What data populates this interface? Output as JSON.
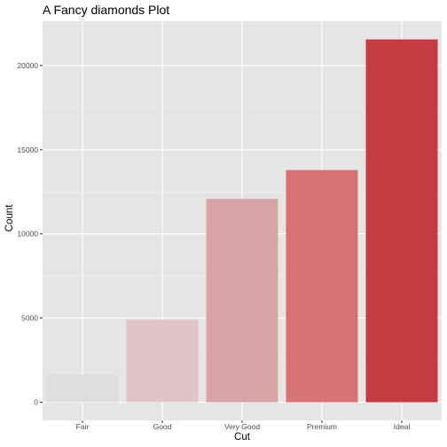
{
  "chart_data": {
    "type": "bar",
    "title": "A Fancy diamonds Plot",
    "xlabel": "Cut",
    "ylabel": "Count",
    "categories": [
      "Fair",
      "Good",
      "Very Good",
      "Premium",
      "Ideal"
    ],
    "values": [
      1610,
      4906,
      12082,
      13791,
      21551
    ],
    "colors": [
      "#dedede",
      "#dfc5c7",
      "#daa3a5",
      "#d57275",
      "#c63b42"
    ],
    "y_ticks": [
      0,
      5000,
      10000,
      15000,
      20000
    ],
    "ylim": [
      -1077.55,
      22628.55
    ],
    "panel_background": "#e5e5e5",
    "grid": true,
    "legend": "none"
  }
}
